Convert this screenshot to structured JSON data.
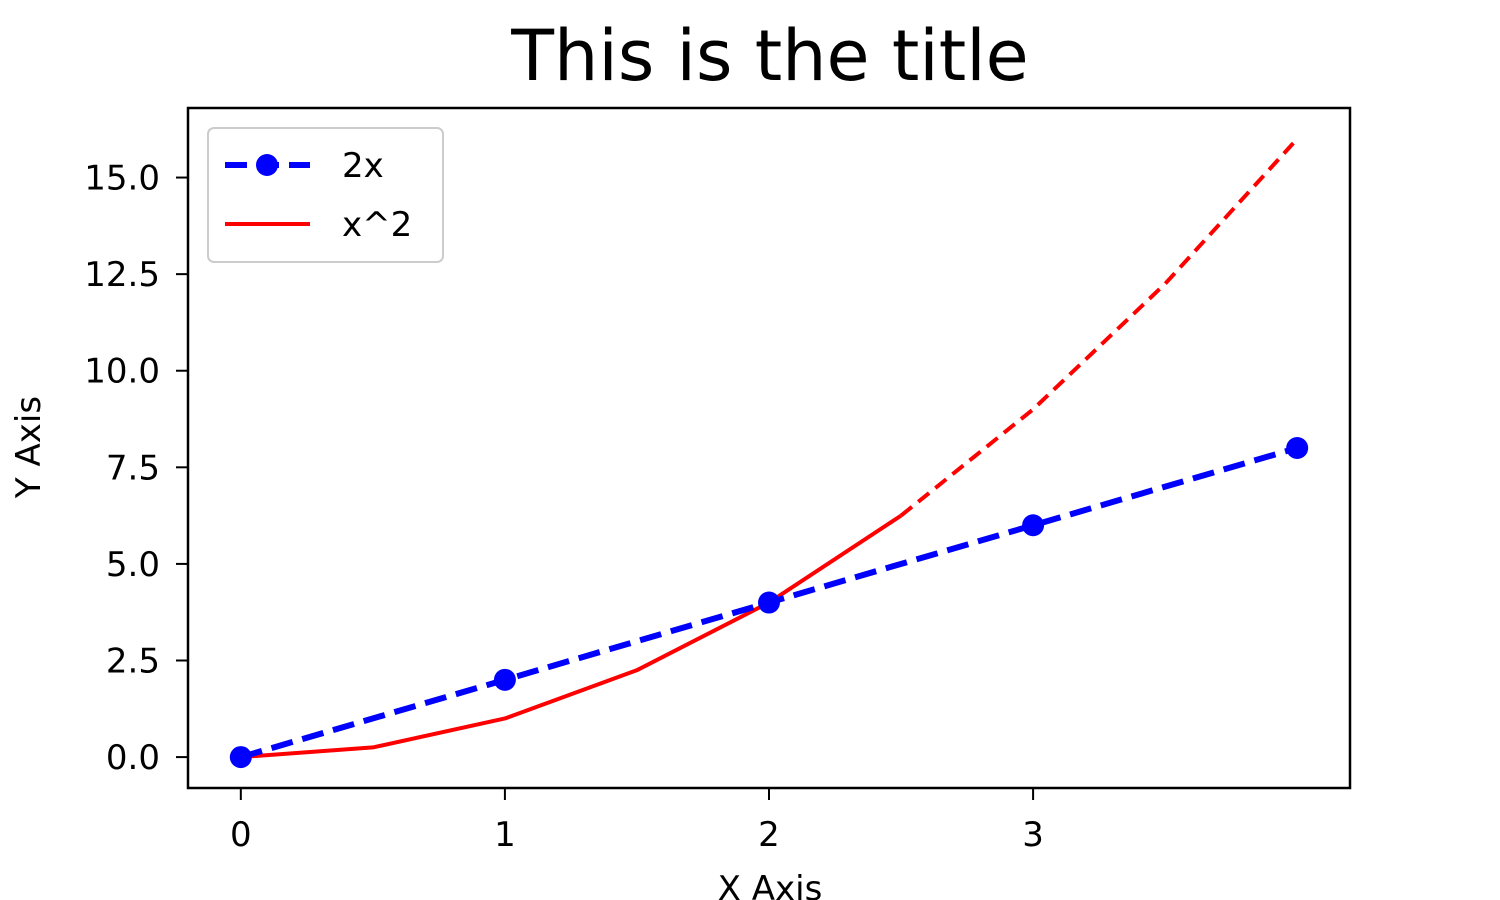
{
  "chart_data": {
    "type": "line",
    "title": "This is the title",
    "xlabel": "X Axis",
    "ylabel": "Y Axis",
    "xlim": [
      -0.2,
      4.2
    ],
    "ylim": [
      -0.8,
      16.8
    ],
    "x_ticks": [
      {
        "value": 0,
        "label": "0"
      },
      {
        "value": 1,
        "label": "1"
      },
      {
        "value": 2,
        "label": "2"
      },
      {
        "value": 3,
        "label": "3"
      }
    ],
    "y_ticks": [
      {
        "value": 0,
        "label": "0.0"
      },
      {
        "value": 2.5,
        "label": "2.5"
      },
      {
        "value": 5,
        "label": "5.0"
      },
      {
        "value": 7.5,
        "label": "7.5"
      },
      {
        "value": 10,
        "label": "10.0"
      },
      {
        "value": 12.5,
        "label": "12.5"
      },
      {
        "value": 15,
        "label": "15.0"
      }
    ],
    "series": [
      {
        "name": "2x",
        "color": "#0000ff",
        "line_style": "dashed",
        "marker": "circle",
        "x": [
          0,
          1,
          2,
          3,
          4
        ],
        "y": [
          0,
          2,
          4,
          6,
          8
        ]
      },
      {
        "name": "x^2",
        "color": "#ff0000",
        "line_style": "solid-then-dashed",
        "solid_until_x": 2.5,
        "marker": "none",
        "x": [
          0,
          0.5,
          1,
          1.5,
          2,
          2.5,
          3,
          3.5,
          4
        ],
        "y": [
          0,
          0.25,
          1,
          2.25,
          4,
          6.25,
          9,
          12.25,
          16
        ]
      }
    ],
    "legend": {
      "location": "top-left",
      "entries": [
        "2x",
        "x^2"
      ]
    },
    "grid": false
  }
}
